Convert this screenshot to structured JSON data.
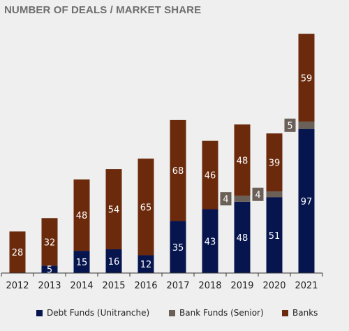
{
  "title": "NUMBER OF DEALS / MARKET SHARE",
  "colors": {
    "debt": "#07154f",
    "bank_funds": "#6b6058",
    "banks": "#6b2a0c",
    "axis": "#333333"
  },
  "chart_data": {
    "type": "bar",
    "stacked": true,
    "categories": [
      "2012",
      "2013",
      "2014",
      "2015",
      "2016",
      "2017",
      "2018",
      "2019",
      "2020",
      "2021"
    ],
    "series": [
      {
        "name": "Debt Funds (Unitranche)",
        "values": [
          0,
          5,
          15,
          16,
          12,
          35,
          43,
          48,
          51,
          97
        ]
      },
      {
        "name": "Bank Funds (Senior)",
        "values": [
          0,
          0,
          0,
          0,
          0,
          0,
          0,
          4,
          4,
          5
        ]
      },
      {
        "name": "Banks",
        "values": [
          28,
          32,
          48,
          54,
          65,
          68,
          46,
          48,
          39,
          59
        ]
      }
    ],
    "data_labels": [
      [
        "",
        "5",
        "15",
        "16",
        "12",
        "35",
        "43",
        "48",
        "51",
        "97"
      ],
      [
        "",
        "",
        "",
        "",
        "",
        "",
        "",
        "4",
        "4",
        "5"
      ],
      [
        "28",
        "32",
        "48",
        "54",
        "65",
        "68",
        "46",
        "48",
        "39",
        "59"
      ]
    ],
    "ylim": [
      0,
      165
    ],
    "legend_position": "bottom",
    "grid": false
  },
  "legend": {
    "debt_label": "Debt Funds (Unitranche)",
    "bank_funds_label": "Bank Funds (Senior)",
    "banks_label": "Banks"
  }
}
